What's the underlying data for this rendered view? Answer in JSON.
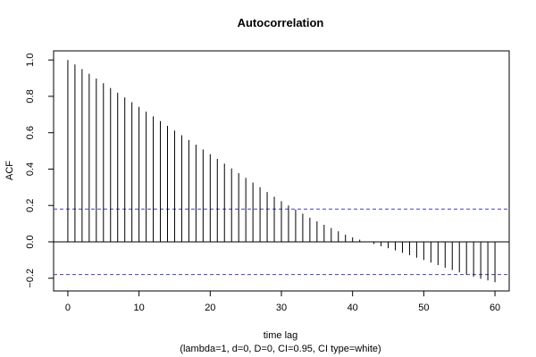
{
  "chart_data": {
    "type": "bar",
    "title": "Autocorrelation",
    "xlabel": "time lag",
    "ylabel": "ACF",
    "subtitle": "(lambda=1, d=0, D=0, CI=0.95, CI type=white)",
    "xlim": [
      -2,
      62
    ],
    "ylim": [
      -0.27,
      1.05
    ],
    "x_ticks": [
      0,
      10,
      20,
      30,
      40,
      50,
      60
    ],
    "y_ticks": [
      -0.2,
      0.0,
      0.2,
      0.4,
      0.6,
      0.8,
      1.0
    ],
    "x_tick_labels": [
      "0",
      "10",
      "20",
      "30",
      "40",
      "50",
      "60"
    ],
    "y_tick_labels": [
      "−0.2",
      "0.0",
      "0.2",
      "0.4",
      "0.6",
      "0.8",
      "1.0"
    ],
    "lags": [
      0,
      1,
      2,
      3,
      4,
      5,
      6,
      7,
      8,
      9,
      10,
      11,
      12,
      13,
      14,
      15,
      16,
      17,
      18,
      19,
      20,
      21,
      22,
      23,
      24,
      25,
      26,
      27,
      28,
      29,
      30,
      31,
      32,
      33,
      34,
      35,
      36,
      37,
      38,
      39,
      40,
      41,
      42,
      43,
      44,
      45,
      46,
      47,
      48,
      49,
      50,
      51,
      52,
      53,
      54,
      55,
      56,
      57,
      58,
      59,
      60
    ],
    "values": [
      1.0,
      0.975,
      0.95,
      0.924,
      0.898,
      0.872,
      0.846,
      0.82,
      0.794,
      0.768,
      0.742,
      0.716,
      0.69,
      0.664,
      0.638,
      0.612,
      0.586,
      0.56,
      0.534,
      0.508,
      0.482,
      0.456,
      0.43,
      0.404,
      0.378,
      0.352,
      0.326,
      0.3,
      0.274,
      0.248,
      0.224,
      0.2,
      0.178,
      0.155,
      0.133,
      0.113,
      0.094,
      0.076,
      0.058,
      0.04,
      0.025,
      0.012,
      0.0,
      -0.012,
      -0.024,
      -0.035,
      -0.047,
      -0.06,
      -0.073,
      -0.087,
      -0.1,
      -0.114,
      -0.128,
      -0.142,
      -0.155,
      -0.168,
      -0.18,
      -0.192,
      -0.203,
      -0.212,
      -0.222
    ],
    "ci_upper": 0.18,
    "ci_lower": -0.18,
    "colors": {
      "bars": "#000000",
      "ci": "#4040c0",
      "zero_line": "#000000"
    }
  }
}
